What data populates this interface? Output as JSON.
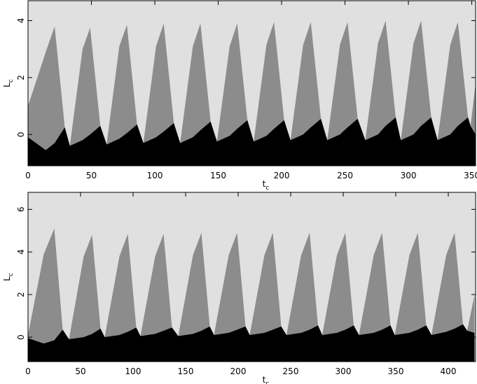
{
  "chart_data": [
    {
      "type": "area",
      "background": "#e0e0e0",
      "x": [
        0,
        14,
        21,
        29,
        33,
        43,
        49,
        57,
        62,
        72,
        78,
        86,
        91,
        101,
        107,
        115,
        120,
        130,
        136,
        144,
        149,
        159,
        165,
        173,
        178,
        188,
        194,
        202,
        207,
        217,
        223,
        231,
        236,
        246,
        252,
        260,
        266,
        276,
        282,
        290,
        294,
        304,
        310,
        318,
        323,
        333,
        339,
        347,
        349,
        353
      ],
      "series": [
        {
          "color": "#8c8c8c",
          "values": [
            1.0,
            2.9,
            3.8,
            0.25,
            -0.4,
            3.0,
            3.75,
            0.3,
            -0.35,
            3.1,
            3.85,
            0.35,
            -0.3,
            3.1,
            3.9,
            0.4,
            -0.3,
            3.1,
            3.9,
            0.45,
            -0.25,
            3.1,
            3.9,
            0.5,
            -0.25,
            3.15,
            3.95,
            0.5,
            -0.2,
            3.15,
            3.95,
            0.55,
            -0.2,
            3.15,
            3.95,
            0.55,
            -0.2,
            3.2,
            4.0,
            0.6,
            -0.2,
            3.2,
            4.0,
            0.6,
            -0.2,
            3.15,
            3.95,
            0.6,
            0.3,
            1.8
          ]
        },
        {
          "color": "#000000",
          "values": [
            -0.1,
            -0.55,
            -0.3,
            0.25,
            -0.4,
            -0.2,
            0.0,
            0.3,
            -0.35,
            -0.15,
            0.05,
            0.35,
            -0.3,
            -0.1,
            0.1,
            0.4,
            -0.3,
            -0.1,
            0.15,
            0.45,
            -0.25,
            -0.05,
            0.2,
            0.5,
            -0.25,
            -0.05,
            0.2,
            0.5,
            -0.2,
            0.0,
            0.25,
            0.55,
            -0.2,
            0.0,
            0.25,
            0.55,
            -0.2,
            0.0,
            0.3,
            0.6,
            -0.2,
            0.0,
            0.3,
            0.6,
            -0.2,
            0.0,
            0.3,
            0.6,
            0.3,
            0.0
          ]
        }
      ],
      "xlim": [
        0,
        353
      ],
      "ylim": [
        -1.1,
        4.7
      ],
      "xticks": [
        0,
        50,
        100,
        150,
        200,
        250,
        300,
        350
      ],
      "yticks": [
        0,
        2,
        4
      ],
      "xlabel": "t",
      "xlabel_sub": "c",
      "ylabel": "L",
      "ylabel_sub": "c"
    },
    {
      "type": "area",
      "background": "#e0e0e0",
      "x": [
        0,
        15,
        25,
        33,
        39,
        53,
        61,
        69,
        73,
        87,
        95,
        103,
        107,
        121,
        129,
        137,
        143,
        157,
        165,
        173,
        177,
        191,
        199,
        207,
        211,
        225,
        233,
        241,
        246,
        260,
        268,
        276,
        280,
        294,
        302,
        310,
        315,
        329,
        337,
        345,
        349,
        363,
        371,
        379,
        384,
        398,
        406,
        414,
        418,
        425
      ],
      "series": [
        {
          "color": "#8c8c8c",
          "values": [
            0.1,
            3.9,
            5.1,
            0.35,
            -0.1,
            3.8,
            4.8,
            0.4,
            0.0,
            3.8,
            4.85,
            0.45,
            0.05,
            3.8,
            4.85,
            0.45,
            0.05,
            3.85,
            4.9,
            0.5,
            0.1,
            3.85,
            4.9,
            0.5,
            0.1,
            3.85,
            4.9,
            0.5,
            0.1,
            3.85,
            4.9,
            0.55,
            0.1,
            3.85,
            4.9,
            0.55,
            0.1,
            3.85,
            4.9,
            0.55,
            0.1,
            3.85,
            4.9,
            0.55,
            0.1,
            3.85,
            4.9,
            0.6,
            0.3,
            2.0
          ]
        },
        {
          "color": "#000000",
          "values": [
            -0.05,
            -0.3,
            -0.15,
            0.35,
            -0.1,
            0.0,
            0.15,
            0.4,
            0.0,
            0.1,
            0.25,
            0.45,
            0.05,
            0.15,
            0.3,
            0.45,
            0.05,
            0.15,
            0.3,
            0.5,
            0.1,
            0.2,
            0.35,
            0.5,
            0.1,
            0.2,
            0.35,
            0.5,
            0.1,
            0.2,
            0.35,
            0.55,
            0.1,
            0.2,
            0.35,
            0.55,
            0.1,
            0.2,
            0.35,
            0.55,
            0.1,
            0.2,
            0.35,
            0.55,
            0.1,
            0.25,
            0.4,
            0.6,
            0.3,
            0.2
          ]
        }
      ],
      "xlim": [
        0,
        426
      ],
      "ylim": [
        -1.15,
        6.8
      ],
      "xticks": [
        0,
        50,
        100,
        150,
        200,
        250,
        300,
        350,
        400
      ],
      "yticks": [
        0,
        2,
        4,
        6
      ],
      "xlabel": "t",
      "xlabel_sub": "c",
      "ylabel": "L",
      "ylabel_sub": "c"
    }
  ]
}
